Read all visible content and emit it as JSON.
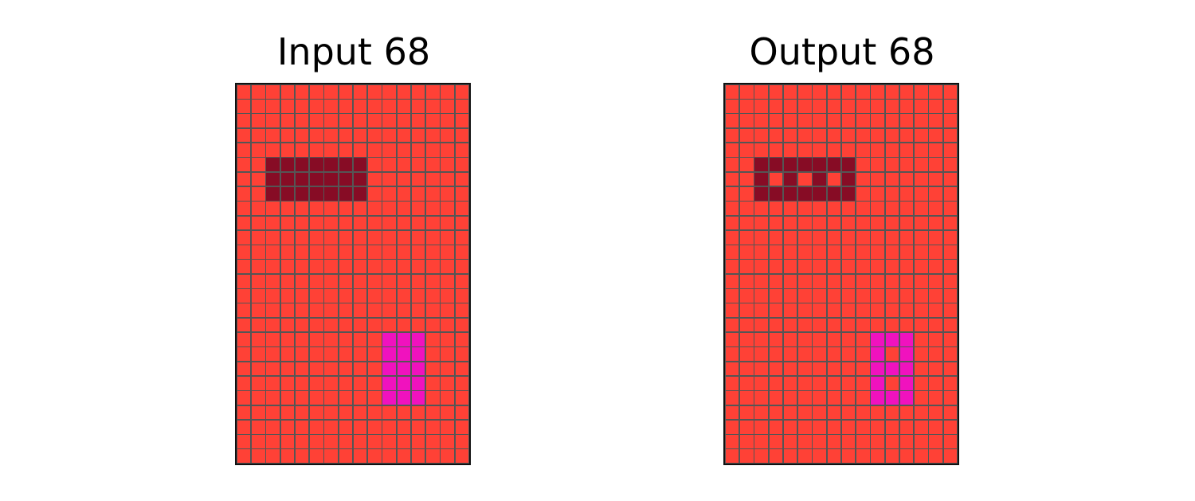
{
  "palette": {
    "0": "#FF4136",
    "1": "#870C25",
    "2": "#F012BE",
    "grid_line": "#555555",
    "border": "#111111"
  },
  "panels": [
    {
      "title": "Input 68",
      "grid": [
        [
          0,
          0,
          0,
          0,
          0,
          0,
          0,
          0,
          0,
          0,
          0,
          0,
          0,
          0,
          0,
          0
        ],
        [
          0,
          0,
          0,
          0,
          0,
          0,
          0,
          0,
          0,
          0,
          0,
          0,
          0,
          0,
          0,
          0
        ],
        [
          0,
          0,
          0,
          0,
          0,
          0,
          0,
          0,
          0,
          0,
          0,
          0,
          0,
          0,
          0,
          0
        ],
        [
          0,
          0,
          0,
          0,
          0,
          0,
          0,
          0,
          0,
          0,
          0,
          0,
          0,
          0,
          0,
          0
        ],
        [
          0,
          0,
          0,
          0,
          0,
          0,
          0,
          0,
          0,
          0,
          0,
          0,
          0,
          0,
          0,
          0
        ],
        [
          0,
          0,
          1,
          1,
          1,
          1,
          1,
          1,
          1,
          0,
          0,
          0,
          0,
          0,
          0,
          0
        ],
        [
          0,
          0,
          1,
          1,
          1,
          1,
          1,
          1,
          1,
          0,
          0,
          0,
          0,
          0,
          0,
          0
        ],
        [
          0,
          0,
          1,
          1,
          1,
          1,
          1,
          1,
          1,
          0,
          0,
          0,
          0,
          0,
          0,
          0
        ],
        [
          0,
          0,
          0,
          0,
          0,
          0,
          0,
          0,
          0,
          0,
          0,
          0,
          0,
          0,
          0,
          0
        ],
        [
          0,
          0,
          0,
          0,
          0,
          0,
          0,
          0,
          0,
          0,
          0,
          0,
          0,
          0,
          0,
          0
        ],
        [
          0,
          0,
          0,
          0,
          0,
          0,
          0,
          0,
          0,
          0,
          0,
          0,
          0,
          0,
          0,
          0
        ],
        [
          0,
          0,
          0,
          0,
          0,
          0,
          0,
          0,
          0,
          0,
          0,
          0,
          0,
          0,
          0,
          0
        ],
        [
          0,
          0,
          0,
          0,
          0,
          0,
          0,
          0,
          0,
          0,
          0,
          0,
          0,
          0,
          0,
          0
        ],
        [
          0,
          0,
          0,
          0,
          0,
          0,
          0,
          0,
          0,
          0,
          0,
          0,
          0,
          0,
          0,
          0
        ],
        [
          0,
          0,
          0,
          0,
          0,
          0,
          0,
          0,
          0,
          0,
          0,
          0,
          0,
          0,
          0,
          0
        ],
        [
          0,
          0,
          0,
          0,
          0,
          0,
          0,
          0,
          0,
          0,
          0,
          0,
          0,
          0,
          0,
          0
        ],
        [
          0,
          0,
          0,
          0,
          0,
          0,
          0,
          0,
          0,
          0,
          0,
          0,
          0,
          0,
          0,
          0
        ],
        [
          0,
          0,
          0,
          0,
          0,
          0,
          0,
          0,
          0,
          0,
          2,
          2,
          2,
          0,
          0,
          0
        ],
        [
          0,
          0,
          0,
          0,
          0,
          0,
          0,
          0,
          0,
          0,
          2,
          2,
          2,
          0,
          0,
          0
        ],
        [
          0,
          0,
          0,
          0,
          0,
          0,
          0,
          0,
          0,
          0,
          2,
          2,
          2,
          0,
          0,
          0
        ],
        [
          0,
          0,
          0,
          0,
          0,
          0,
          0,
          0,
          0,
          0,
          2,
          2,
          2,
          0,
          0,
          0
        ],
        [
          0,
          0,
          0,
          0,
          0,
          0,
          0,
          0,
          0,
          0,
          2,
          2,
          2,
          0,
          0,
          0
        ],
        [
          0,
          0,
          0,
          0,
          0,
          0,
          0,
          0,
          0,
          0,
          0,
          0,
          0,
          0,
          0,
          0
        ],
        [
          0,
          0,
          0,
          0,
          0,
          0,
          0,
          0,
          0,
          0,
          0,
          0,
          0,
          0,
          0,
          0
        ],
        [
          0,
          0,
          0,
          0,
          0,
          0,
          0,
          0,
          0,
          0,
          0,
          0,
          0,
          0,
          0,
          0
        ],
        [
          0,
          0,
          0,
          0,
          0,
          0,
          0,
          0,
          0,
          0,
          0,
          0,
          0,
          0,
          0,
          0
        ]
      ]
    },
    {
      "title": "Output 68",
      "grid": [
        [
          0,
          0,
          0,
          0,
          0,
          0,
          0,
          0,
          0,
          0,
          0,
          0,
          0,
          0,
          0,
          0
        ],
        [
          0,
          0,
          0,
          0,
          0,
          0,
          0,
          0,
          0,
          0,
          0,
          0,
          0,
          0,
          0,
          0
        ],
        [
          0,
          0,
          0,
          0,
          0,
          0,
          0,
          0,
          0,
          0,
          0,
          0,
          0,
          0,
          0,
          0
        ],
        [
          0,
          0,
          0,
          0,
          0,
          0,
          0,
          0,
          0,
          0,
          0,
          0,
          0,
          0,
          0,
          0
        ],
        [
          0,
          0,
          0,
          0,
          0,
          0,
          0,
          0,
          0,
          0,
          0,
          0,
          0,
          0,
          0,
          0
        ],
        [
          0,
          0,
          1,
          1,
          1,
          1,
          1,
          1,
          1,
          0,
          0,
          0,
          0,
          0,
          0,
          0
        ],
        [
          0,
          0,
          1,
          0,
          1,
          0,
          1,
          0,
          1,
          0,
          0,
          0,
          0,
          0,
          0,
          0
        ],
        [
          0,
          0,
          1,
          1,
          1,
          1,
          1,
          1,
          1,
          0,
          0,
          0,
          0,
          0,
          0,
          0
        ],
        [
          0,
          0,
          0,
          0,
          0,
          0,
          0,
          0,
          0,
          0,
          0,
          0,
          0,
          0,
          0,
          0
        ],
        [
          0,
          0,
          0,
          0,
          0,
          0,
          0,
          0,
          0,
          0,
          0,
          0,
          0,
          0,
          0,
          0
        ],
        [
          0,
          0,
          0,
          0,
          0,
          0,
          0,
          0,
          0,
          0,
          0,
          0,
          0,
          0,
          0,
          0
        ],
        [
          0,
          0,
          0,
          0,
          0,
          0,
          0,
          0,
          0,
          0,
          0,
          0,
          0,
          0,
          0,
          0
        ],
        [
          0,
          0,
          0,
          0,
          0,
          0,
          0,
          0,
          0,
          0,
          0,
          0,
          0,
          0,
          0,
          0
        ],
        [
          0,
          0,
          0,
          0,
          0,
          0,
          0,
          0,
          0,
          0,
          0,
          0,
          0,
          0,
          0,
          0
        ],
        [
          0,
          0,
          0,
          0,
          0,
          0,
          0,
          0,
          0,
          0,
          0,
          0,
          0,
          0,
          0,
          0
        ],
        [
          0,
          0,
          0,
          0,
          0,
          0,
          0,
          0,
          0,
          0,
          0,
          0,
          0,
          0,
          0,
          0
        ],
        [
          0,
          0,
          0,
          0,
          0,
          0,
          0,
          0,
          0,
          0,
          0,
          0,
          0,
          0,
          0,
          0
        ],
        [
          0,
          0,
          0,
          0,
          0,
          0,
          0,
          0,
          0,
          0,
          2,
          2,
          2,
          0,
          0,
          0
        ],
        [
          0,
          0,
          0,
          0,
          0,
          0,
          0,
          0,
          0,
          0,
          2,
          0,
          2,
          0,
          0,
          0
        ],
        [
          0,
          0,
          0,
          0,
          0,
          0,
          0,
          0,
          0,
          0,
          2,
          2,
          2,
          0,
          0,
          0
        ],
        [
          0,
          0,
          0,
          0,
          0,
          0,
          0,
          0,
          0,
          0,
          2,
          0,
          2,
          0,
          0,
          0
        ],
        [
          0,
          0,
          0,
          0,
          0,
          0,
          0,
          0,
          0,
          0,
          2,
          2,
          2,
          0,
          0,
          0
        ],
        [
          0,
          0,
          0,
          0,
          0,
          0,
          0,
          0,
          0,
          0,
          0,
          0,
          0,
          0,
          0,
          0
        ],
        [
          0,
          0,
          0,
          0,
          0,
          0,
          0,
          0,
          0,
          0,
          0,
          0,
          0,
          0,
          0,
          0
        ],
        [
          0,
          0,
          0,
          0,
          0,
          0,
          0,
          0,
          0,
          0,
          0,
          0,
          0,
          0,
          0,
          0
        ],
        [
          0,
          0,
          0,
          0,
          0,
          0,
          0,
          0,
          0,
          0,
          0,
          0,
          0,
          0,
          0,
          0
        ]
      ]
    }
  ]
}
